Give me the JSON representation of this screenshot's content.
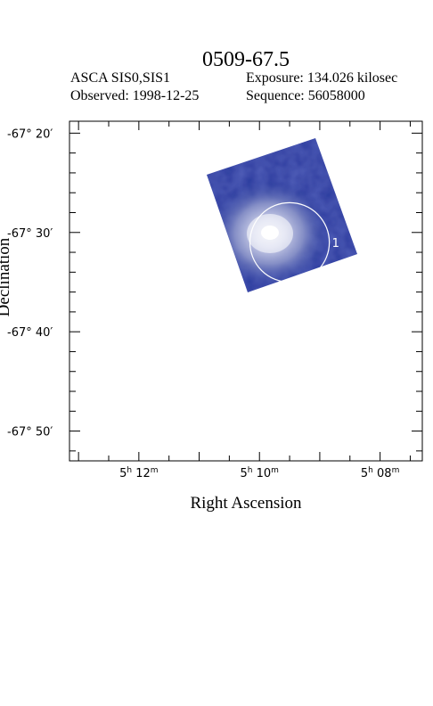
{
  "chart_data": {
    "type": "image",
    "title": "0509-67.5",
    "instrument": "ASCA SIS0,SIS1",
    "exposure": "Exposure: 134.026 kilosec",
    "observed": "Observed: 1998-12-25",
    "sequence": "Sequence: 56058000",
    "xlabel": "Right Ascension",
    "ylabel": "Declination",
    "x_ticks": [
      {
        "h": "5",
        "m": "12",
        "ra_min": 12
      },
      {
        "h": "5",
        "m": "10",
        "ra_min": 10
      },
      {
        "h": "5",
        "m": "08",
        "ra_min": 8
      }
    ],
    "y_ticks": [
      {
        "label": "-67° 20′",
        "dec_arcmin": -20
      },
      {
        "label": "-67° 30′",
        "dec_arcmin": -30
      },
      {
        "label": "-67° 40′",
        "dec_arcmin": -40
      },
      {
        "label": "-67° 50′",
        "dec_arcmin": -50
      }
    ],
    "xlim_ra_min": [
      13.15,
      7.3
    ],
    "ylim_dec_arcmin": [
      -18.8,
      -53.0
    ],
    "source_regions": [
      {
        "label": "1",
        "ra_min": 9.5,
        "dec_arcmin": -31.0,
        "radius_arcmin": 4.0
      }
    ],
    "colors": {
      "image_dark": "#23379a",
      "image_bright": "#ffffff",
      "region": "#ffffff"
    }
  }
}
